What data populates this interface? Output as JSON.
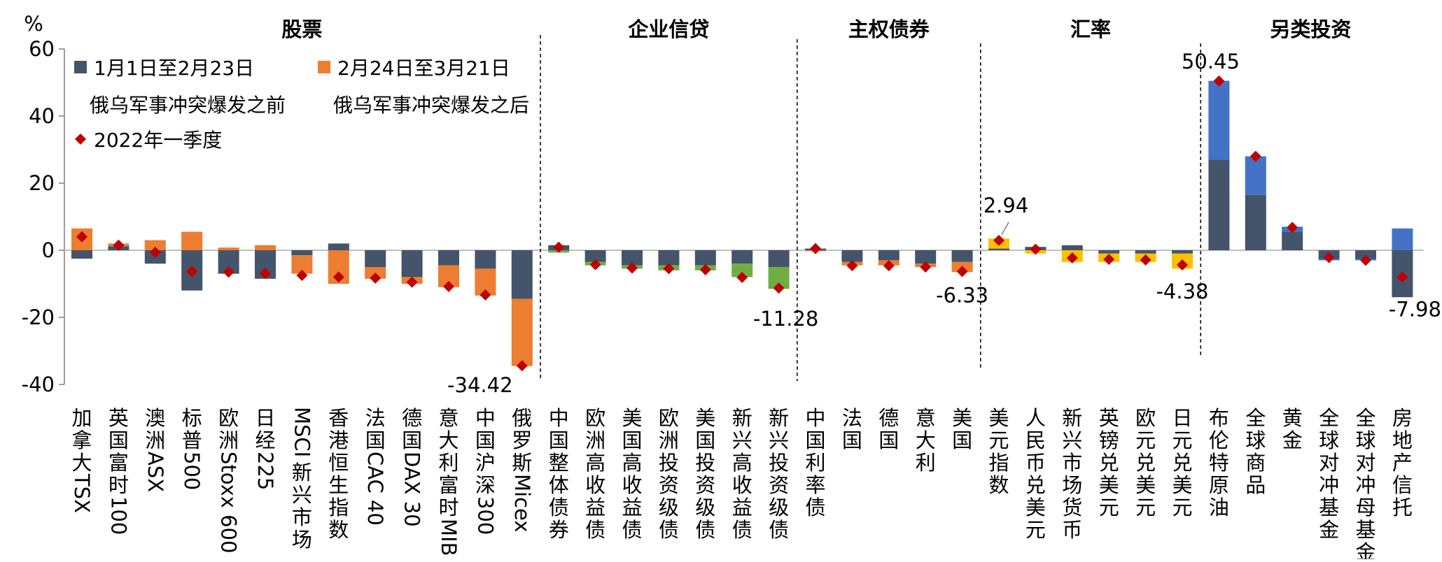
{
  "chart_data": {
    "type": "bar",
    "ylabel": "%",
    "ylim": [
      -40,
      60
    ],
    "yticks": [
      -40,
      -20,
      0,
      20,
      40,
      60
    ],
    "groups": [
      {
        "title": "股票",
        "start": 0,
        "end": 12
      },
      {
        "title": "企业信贷",
        "start": 13,
        "end": 19
      },
      {
        "title": "主权债券",
        "start": 20,
        "end": 24
      },
      {
        "title": "汇率",
        "start": 25,
        "end": 30
      },
      {
        "title": "另类投资",
        "start": 31,
        "end": 36
      }
    ],
    "legend": [
      {
        "label": "1月1日至2月23日",
        "sublabel": "俄乌军事冲突爆发之前",
        "color": "#44546a",
        "marker": "square"
      },
      {
        "label": "2月24日至3月21日",
        "sublabel": "俄乌军事冲突爆发之后",
        "color": "#ed7d31",
        "marker": "square"
      },
      {
        "label": "2022年一季度",
        "color": "#c00000",
        "marker": "diamond"
      }
    ],
    "series_colors": {
      "before": "#44546a",
      "after_equity": "#ed7d31",
      "after_credit": "#70ad47",
      "after_sovereign": "#ed7d31",
      "after_fx": "#ffc000",
      "after_alt": "#4472c4",
      "q1_marker": "#c00000"
    },
    "categories": [
      "加拿大TSX",
      "英国富时100",
      "澳洲ASX",
      "标普500",
      "欧洲Stoxx 600",
      "日经225",
      "MSCI 新兴市场",
      "香港恒生指数",
      "法国CAC 40",
      "德国DAX 30",
      "意大利富时MIB",
      "中国沪深300",
      "俄罗斯Micex",
      "中国整体债券",
      "欧洲高收益债",
      "美国高收益债",
      "欧洲投资级债",
      "美国投资级债",
      "新兴高收益债",
      "新兴投资级债",
      "中国利率债",
      "法国",
      "德国",
      "意大利",
      "美国",
      "美元指数",
      "人民币兑美元",
      "新兴市场货币",
      "英镑兑美元",
      "欧元兑美元",
      "日元兑美元",
      "布伦特原油",
      "全球商品",
      "黄金",
      "全球对冲基金",
      "全球对冲母基金",
      "房地产信托"
    ],
    "series": [
      {
        "name": "1月1日至2月23日",
        "values": [
          -2.5,
          1.2,
          -4.0,
          -12.0,
          -7.0,
          -8.5,
          -1.5,
          2.0,
          -5.0,
          -8.0,
          -4.5,
          -5.5,
          -14.5,
          1.5,
          -3.5,
          -4.5,
          -4.5,
          -4.5,
          -4.0,
          -5.0,
          0.5,
          -3.5,
          -3.0,
          -4.0,
          -3.5,
          0.5,
          1.0,
          1.5,
          -1.0,
          -1.0,
          -1.0,
          27.0,
          16.5,
          5.5,
          -2.5,
          -2.5,
          -14.0
        ]
      },
      {
        "name": "2月24日至3月21日",
        "values": [
          6.5,
          0.8,
          3.0,
          5.5,
          0.8,
          1.5,
          -5.5,
          -10.0,
          -3.5,
          -2.0,
          -6.5,
          -8.0,
          -20.0,
          -0.7,
          -1.0,
          -1.0,
          -1.5,
          -1.5,
          -4.0,
          -6.5,
          -0.3,
          -1.0,
          -1.5,
          -1.0,
          -3.0,
          3.0,
          -1.0,
          -3.5,
          -2.5,
          -2.5,
          -4.5,
          23.5,
          11.5,
          1.5,
          -0.5,
          -0.5,
          6.5
        ]
      },
      {
        "name": "2022年一季度",
        "values": [
          4.0,
          1.5,
          -0.6,
          -6.3,
          -6.5,
          -6.9,
          -7.5,
          -8.0,
          -8.3,
          -9.5,
          -10.8,
          -13.3,
          -34.42,
          0.9,
          -4.3,
          -5.3,
          -5.5,
          -5.8,
          -8.1,
          -11.28,
          0.5,
          -4.6,
          -4.6,
          -5.0,
          -6.33,
          2.94,
          0.3,
          -2.3,
          -2.7,
          -2.9,
          -4.38,
          50.45,
          28.0,
          6.8,
          -2.2,
          -3.0,
          -7.98
        ]
      }
    ],
    "data_labels": [
      {
        "index": 12,
        "text": "-34.42"
      },
      {
        "index": 19,
        "text": "-11.28"
      },
      {
        "index": 24,
        "text": "-6.33"
      },
      {
        "index": 25,
        "text": "2.94"
      },
      {
        "index": 30,
        "text": "-4.38"
      },
      {
        "index": 31,
        "text": "50.45"
      },
      {
        "index": 36,
        "text": "-7.98"
      }
    ]
  }
}
